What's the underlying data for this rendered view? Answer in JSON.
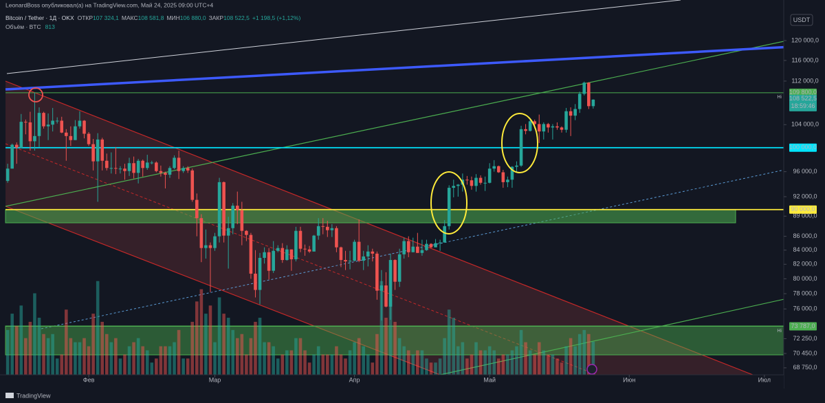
{
  "header": {
    "publisher": "LeonardBoss опубликовал(а) на TradingView.com, Май 24, 2025 09:00 UTC+4",
    "symbol": "Bitcoin / Tether · 1Д · OKX",
    "ohlc": [
      {
        "label": "ОТКР",
        "value": "107 324,1"
      },
      {
        "label": "МАКС",
        "value": "108 581,8"
      },
      {
        "label": "МИН",
        "value": "106 880,0"
      },
      {
        "label": "ЗАКР",
        "value": "108 522,5"
      }
    ],
    "change": "+1 198,5 (+1,12%)",
    "volume_label": "Объём · BTC",
    "volume_value": "813"
  },
  "footer": {
    "brand": "TradingView"
  },
  "chart_data": {
    "type": "candlestick",
    "currency": "USDT",
    "log_scale": true,
    "up_color": "#26a69a",
    "down_color": "#ef5350",
    "ylim": [
      67940,
      125600
    ],
    "xlim": [
      -1.7,
      172.3
    ],
    "vlim": [
      0,
      2700
    ],
    "yticks": [
      {
        "value": 120000,
        "label": "120 000,0"
      },
      {
        "value": 116000,
        "label": "116 000,0"
      },
      {
        "value": 112000,
        "label": "112 000,0"
      },
      {
        "value": 104000,
        "label": "104 000,0"
      },
      {
        "value": 96000,
        "label": "96 000,0"
      },
      {
        "value": 92000,
        "label": "92 000,0"
      },
      {
        "value": 89000,
        "label": "89 000,0"
      },
      {
        "value": 86000,
        "label": "86 000,0"
      },
      {
        "value": 84000,
        "label": "84 000,0"
      },
      {
        "value": 82000,
        "label": "82 000,0"
      },
      {
        "value": 80000,
        "label": "80 000,0"
      },
      {
        "value": 78000,
        "label": "78 000,0"
      },
      {
        "value": 76000,
        "label": "76 000,0"
      },
      {
        "value": 72250,
        "label": "72 250,0"
      },
      {
        "value": 70450,
        "label": "70 450,0"
      },
      {
        "value": 68750,
        "label": "68 750,0"
      }
    ],
    "xticks": [
      {
        "value": 18,
        "label": "Фев"
      },
      {
        "value": 46,
        "label": "Мар"
      },
      {
        "value": 77,
        "label": "Апр"
      },
      {
        "value": 107,
        "label": "Май"
      },
      {
        "value": 138,
        "label": "Июн"
      },
      {
        "value": 168,
        "label": "Июл"
      }
    ],
    "price_lines": [
      {
        "value": 109800,
        "label": "109 800,0",
        "color": "#4caf50"
      },
      {
        "value": 100000,
        "label": "100 000,0",
        "color": "#00e5ff"
      },
      {
        "value": 90000,
        "label": "90 000,0",
        "color": "#ffeb3b"
      },
      {
        "value": 73787,
        "label": "73 787,0",
        "color": "#4caf50"
      }
    ],
    "last_price": {
      "value": 108522.5,
      "label": "108 522,5",
      "countdown": "18:59:46"
    },
    "hi_labels": [
      "Hi",
      "Hi"
    ],
    "open": [
      94500,
      96500,
      100500,
      100000,
      104500,
      104400,
      101100,
      102000,
      106100,
      103700,
      104000,
      104700,
      104700,
      102600,
      102000,
      101300,
      103700,
      104700,
      102400,
      100600,
      97700,
      101400,
      97800,
      96600,
      96600,
      96500,
      96500,
      96100,
      97400,
      95800,
      97800,
      96600,
      97500,
      97500,
      96100,
      95800,
      95500,
      96600,
      98300,
      96100,
      96600,
      96200,
      91500,
      88700,
      84300,
      84700,
      84300,
      86000,
      94300,
      86100,
      87200,
      90600,
      89900,
      86800,
      86200,
      80700,
      78500,
      82900,
      83700,
      81100,
      83900,
      84300,
      82600,
      84100,
      82700,
      86800,
      84200,
      84100,
      83800,
      86100,
      87500,
      87400,
      86900,
      87200,
      84400,
      82600,
      82400,
      82500,
      85200,
      82500,
      83100,
      83800,
      83500,
      78400,
      79100,
      76300,
      82600,
      79600,
      83400,
      85300,
      83700,
      84500,
      83600,
      84000,
      84900,
      84400,
      85000,
      85100,
      87500,
      93400,
      93700,
      93900,
      94700,
      94600,
      93700,
      95000,
      94200,
      94200,
      96500,
      96900,
      95900,
      94300,
      94700,
      96800,
      97000,
      103200,
      102900,
      104600,
      104100,
      102800,
      104100,
      103500,
      103700,
      103500,
      103100,
      106400,
      105600,
      106800,
      109600,
      111700,
      107324.1
    ],
    "high": [
      97300,
      100700,
      100900,
      105900,
      104900,
      106300,
      109800,
      107100,
      106300,
      106000,
      107000,
      105300,
      105400,
      103200,
      103700,
      104800,
      106400,
      104800,
      102700,
      101500,
      102500,
      101700,
      99000,
      99200,
      100100,
      96900,
      97300,
      98300,
      98500,
      98100,
      98000,
      98800,
      97800,
      97700,
      97000,
      96000,
      96900,
      98700,
      99500,
      96900,
      96900,
      96500,
      92500,
      89300,
      87000,
      85100,
      86500,
      95000,
      94400,
      88900,
      91000,
      92800,
      91200,
      86900,
      86500,
      84000,
      83600,
      84400,
      84300,
      85300,
      84700,
      85000,
      84700,
      84100,
      87400,
      87400,
      84800,
      84600,
      86200,
      88700,
      88700,
      88300,
      87800,
      87500,
      84500,
      83900,
      83900,
      85500,
      88500,
      83900,
      84700,
      84200,
      83800,
      81200,
      80900,
      83500,
      82700,
      84200,
      85800,
      86000,
      85800,
      86500,
      85500,
      85500,
      85000,
      85600,
      85500,
      88400,
      93800,
      94700,
      94000,
      95700,
      95300,
      95200,
      95600,
      95400,
      95200,
      97400,
      97900,
      97000,
      96300,
      95200,
      96900,
      97700,
      103800,
      104100,
      104900,
      104900,
      105800,
      104400,
      104300,
      104100,
      104400,
      103700,
      107000,
      107100,
      107700,
      110000,
      111900,
      111800,
      108581.8
    ],
    "low": [
      94200,
      96500,
      97300,
      99900,
      102300,
      99500,
      99500,
      100100,
      103300,
      101300,
      102800,
      104200,
      102500,
      97800,
      100300,
      101300,
      103300,
      101600,
      100300,
      96200,
      91200,
      96200,
      96200,
      95700,
      95600,
      95700,
      94700,
      95300,
      94900,
      94100,
      95200,
      96300,
      97200,
      95900,
      95200,
      93300,
      95000,
      96400,
      94800,
      95800,
      95800,
      91200,
      86000,
      82300,
      82800,
      78200,
      83900,
      85100,
      85100,
      81400,
      86300,
      87800,
      84700,
      85300,
      80000,
      77500,
      76600,
      82100,
      79900,
      80800,
      83700,
      82200,
      82500,
      81100,
      82400,
      83700,
      83200,
      83600,
      83800,
      85500,
      86300,
      85900,
      85900,
      83700,
      81600,
      81200,
      81300,
      82400,
      82300,
      81200,
      81700,
      82400,
      77200,
      74500,
      76200,
      74600,
      78500,
      78900,
      82800,
      83000,
      83700,
      83600,
      83200,
      83900,
      84300,
      84400,
      83900,
      85100,
      87000,
      91900,
      92000,
      92800,
      93900,
      93100,
      92800,
      93900,
      92900,
      94100,
      96000,
      95800,
      93400,
      93500,
      93400,
      95900,
      96800,
      102300,
      102800,
      103300,
      100800,
      101400,
      102600,
      101400,
      103100,
      102600,
      102600,
      102000,
      104800,
      106100,
      109300,
      106800,
      106880
    ],
    "close": [
      96500,
      100500,
      100000,
      104500,
      104400,
      101100,
      102000,
      106100,
      103700,
      104000,
      104700,
      104700,
      102600,
      102000,
      101300,
      103700,
      104700,
      102400,
      100600,
      97700,
      101400,
      97800,
      96600,
      96600,
      96500,
      96500,
      96100,
      97400,
      95800,
      97800,
      96600,
      97500,
      97500,
      96100,
      95800,
      95500,
      96600,
      98300,
      96100,
      96600,
      96200,
      91500,
      88700,
      84300,
      84700,
      84300,
      86000,
      94300,
      86100,
      87200,
      90600,
      89900,
      86800,
      86200,
      80700,
      78500,
      82900,
      83700,
      81100,
      83900,
      84300,
      82600,
      84100,
      82700,
      86800,
      84200,
      84100,
      83800,
      86100,
      87500,
      87400,
      86900,
      87200,
      84400,
      82600,
      82400,
      82500,
      85200,
      82500,
      83100,
      83800,
      83500,
      78400,
      79100,
      76300,
      82600,
      79600,
      83400,
      85300,
      83700,
      84500,
      83600,
      84000,
      84900,
      84400,
      85000,
      85100,
      87500,
      93400,
      93700,
      93900,
      94700,
      94600,
      93700,
      95000,
      94200,
      94200,
      96500,
      96900,
      95900,
      94300,
      94700,
      96800,
      97000,
      103200,
      102900,
      104600,
      104100,
      102800,
      104100,
      103500,
      103700,
      103500,
      103100,
      106400,
      105600,
      106800,
      109600,
      111700,
      107324.1,
      108522.5
    ],
    "volume": [
      1100,
      1500,
      1200,
      1700,
      900,
      1300,
      2000,
      1400,
      1000,
      900,
      1000,
      400,
      500,
      1600,
      900,
      800,
      800,
      900,
      700,
      1500,
      2300,
      1300,
      1000,
      800,
      900,
      400,
      500,
      700,
      800,
      900,
      700,
      600,
      300,
      400,
      700,
      700,
      700,
      800,
      1100,
      400,
      400,
      1300,
      1800,
      2100,
      1500,
      1700,
      800,
      1900,
      1500,
      1400,
      1100,
      900,
      1000,
      500,
      900,
      1300,
      1400,
      800,
      800,
      700,
      400,
      500,
      600,
      600,
      900,
      900,
      600,
      300,
      500,
      700,
      500,
      500,
      500,
      700,
      500,
      400,
      600,
      800,
      900,
      700,
      500,
      300,
      1000,
      2300,
      1400,
      1900,
      1300,
      900,
      700,
      600,
      500,
      600,
      600,
      400,
      300,
      300,
      400,
      900,
      1600,
      1400,
      700,
      800,
      400,
      500,
      800,
      600,
      600,
      700,
      600,
      400,
      500,
      500,
      600,
      700,
      1100,
      800,
      600,
      500,
      800,
      600,
      500,
      500,
      400,
      300,
      700,
      900,
      700,
      1000,
      1100,
      1000,
      813
    ]
  }
}
